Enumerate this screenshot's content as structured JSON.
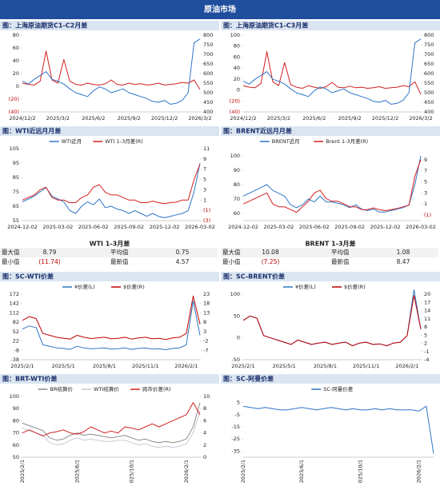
{
  "header": {
    "title": "原油市场"
  },
  "chart_data": [
    {
      "type": "line",
      "title": "图：上海原油期货C1-C2月差",
      "categories": [
        "2024/12/2",
        null,
        null,
        null,
        null,
        null,
        "2025/3/2",
        null,
        null,
        null,
        null,
        null,
        "2025/6/2",
        null,
        null,
        null,
        null,
        null,
        "2025/9/2",
        null,
        null,
        null,
        null,
        null,
        "2025/12/2",
        null,
        null,
        null,
        null,
        null,
        "2026/3/2"
      ],
      "ylim": [
        -40,
        80
      ],
      "yticks": [
        80,
        60,
        40,
        20,
        0,
        {
          "value": -20,
          "label": "(20)"
        },
        {
          "value": -40,
          "label": "(40)"
        }
      ],
      "y2lim": [
        400,
        800
      ],
      "y2ticks": [
        800,
        750,
        700,
        650,
        600,
        550,
        500,
        450,
        400
      ],
      "series": [
        {
          "color": "#d42020",
          "values": [
            5,
            3,
            2,
            8,
            55,
            10,
            5,
            42,
            8,
            3,
            2,
            5,
            3,
            2,
            4,
            10,
            3,
            2,
            5,
            3,
            4,
            2,
            3,
            5,
            2,
            3,
            4,
            6,
            5,
            10,
            -5
          ]
        },
        {
          "color": "#2e75c8",
          "axis": "y2",
          "values": [
            560,
            545,
            570,
            590,
            610,
            570,
            560,
            545,
            520,
            500,
            490,
            480,
            510,
            530,
            520,
            500,
            510,
            520,
            500,
            490,
            480,
            470,
            455,
            450,
            460,
            440,
            445,
            460,
            500,
            760,
            780
          ]
        }
      ]
    },
    {
      "type": "line",
      "title": "图：上海原油期货C1-C3月差",
      "categories": [
        "2024/12/2",
        null,
        null,
        null,
        null,
        null,
        "2025/3/2",
        null,
        null,
        null,
        null,
        null,
        "2025/6/2",
        null,
        null,
        null,
        null,
        null,
        "2025/9/2",
        null,
        null,
        null,
        null,
        null,
        "2025/12/2",
        null,
        null,
        null,
        null,
        null,
        "2026/3/2"
      ],
      "ylim": [
        -40,
        100
      ],
      "yticks": [
        100,
        80,
        60,
        40,
        20,
        0,
        {
          "value": -20,
          "label": "(20)"
        },
        {
          "value": -40,
          "label": "(40)"
        }
      ],
      "y2lim": [
        400,
        800
      ],
      "y2ticks": [
        800,
        750,
        700,
        650,
        600,
        550,
        500,
        450,
        400
      ],
      "series": [
        {
          "color": "#d42020",
          "values": [
            8,
            5,
            4,
            12,
            70,
            15,
            8,
            50,
            10,
            5,
            3,
            8,
            5,
            3,
            6,
            14,
            5,
            4,
            7,
            4,
            5,
            3,
            4,
            6,
            3,
            4,
            5,
            8,
            6,
            15,
            -8
          ]
        },
        {
          "color": "#2e75c8",
          "axis": "y2",
          "values": [
            560,
            545,
            570,
            590,
            610,
            570,
            560,
            545,
            520,
            500,
            490,
            480,
            510,
            530,
            520,
            500,
            510,
            520,
            500,
            490,
            480,
            470,
            455,
            450,
            460,
            440,
            445,
            460,
            500,
            760,
            780
          ]
        }
      ]
    },
    {
      "type": "line",
      "title": "图：WTI近远月月差",
      "legend": true,
      "categories": [
        "2024-12-02",
        null,
        null,
        null,
        null,
        null,
        "2025-03-02",
        null,
        null,
        null,
        null,
        null,
        "2025-06-02",
        null,
        null,
        null,
        null,
        null,
        "2025-09-02",
        null,
        null,
        null,
        null,
        null,
        "2025-12-02",
        null,
        null,
        null,
        null,
        null,
        "2026-03-02"
      ],
      "ylim": [
        55,
        105
      ],
      "yticks": [
        105,
        95,
        85,
        75,
        65,
        55
      ],
      "y2lim": [
        -3,
        11
      ],
      "y2ticks": [
        11,
        9,
        7,
        5,
        3,
        1,
        {
          "value": -1,
          "label": "(1)"
        },
        {
          "value": -3,
          "label": "(3)"
        }
      ],
      "series": [
        {
          "name": "WTI近月",
          "color": "#2e75c8",
          "values": [
            68,
            70,
            72,
            75,
            78,
            72,
            70,
            68,
            62,
            60,
            65,
            68,
            66,
            70,
            64,
            65,
            63,
            62,
            60,
            62,
            60,
            58,
            60,
            58,
            57,
            58,
            59,
            60,
            62,
            75,
            95
          ]
        },
        {
          "name": "WTI 1-3月差(R)",
          "color": "#d42020",
          "axis": "y2",
          "values": [
            1,
            1.5,
            2,
            3,
            3.5,
            1.5,
            1,
            1,
            0.5,
            0.5,
            1.5,
            2,
            3.5,
            4,
            2.5,
            2,
            2,
            1.5,
            1,
            1,
            0.5,
            0.5,
            0.8,
            0.5,
            0.3,
            0.5,
            0.6,
            1,
            1,
            5,
            8
          ]
        }
      ]
    },
    {
      "type": "line",
      "title": "图：BRENT近远月月差",
      "legend": true,
      "categories": [
        "2024-12-02",
        null,
        null,
        null,
        null,
        null,
        "2025-03-02",
        null,
        null,
        null,
        null,
        null,
        "2025-06-02",
        null,
        null,
        null,
        null,
        null,
        "2025-09-02",
        null,
        null,
        null,
        null,
        null,
        "2025-12-02",
        null,
        null,
        null,
        null,
        null,
        "2026-03-02"
      ],
      "ylim": [
        55,
        105
      ],
      "yticks": [
        100,
        90,
        80,
        70,
        60
      ],
      "y2lim": [
        -2,
        11
      ],
      "y2ticks": [
        9,
        7,
        5,
        3,
        1,
        {
          "value": -1,
          "label": "(1)"
        }
      ],
      "series": [
        {
          "name": "BRENT近月",
          "color": "#2e75c8",
          "values": [
            72,
            74,
            76,
            78,
            80,
            76,
            74,
            72,
            66,
            64,
            66,
            70,
            68,
            72,
            68,
            68,
            67,
            66,
            64,
            66,
            63,
            62,
            63,
            61,
            61,
            62,
            63,
            64,
            66,
            80,
            100
          ]
        },
        {
          "name": "Brent 1-3月差(R)",
          "color": "#d42020",
          "axis": "y2",
          "values": [
            1,
            1.5,
            2,
            2.5,
            3,
            1,
            0.5,
            0.5,
            0,
            -0.5,
            0.5,
            1.5,
            3,
            3.5,
            2,
            1.5,
            1.5,
            1,
            0.5,
            0.5,
            0,
            0,
            0.3,
            0,
            -0.2,
            0,
            0.2,
            0.5,
            0.8,
            6,
            9
          ]
        }
      ]
    },
    {
      "type": "line",
      "title": "图：SC-WTI价差",
      "legend": true,
      "categories": [
        "2025/2/1",
        null,
        null,
        null,
        null,
        null,
        "2025/5/1",
        null,
        null,
        null,
        null,
        null,
        "2025/8/1",
        null,
        null,
        null,
        null,
        null,
        "2025/11/1",
        null,
        null,
        null,
        null,
        null,
        "2026/2/1",
        null,
        null
      ],
      "ylim": [
        -38,
        172
      ],
      "yticks": [
        172,
        142,
        112,
        82,
        52,
        22,
        -8,
        -38
      ],
      "y2lim": [
        -12,
        23
      ],
      "y2ticks": [
        23,
        18,
        13,
        8,
        3,
        -2,
        -7
      ],
      "series": [
        {
          "name": "¥价差(L)",
          "color": "#2e75c8",
          "values": [
            60,
            70,
            65,
            10,
            5,
            0,
            -2,
            -5,
            5,
            0,
            -3,
            -2,
            0,
            -4,
            -3,
            0,
            -5,
            -2,
            0,
            -4,
            -3,
            -6,
            -2,
            0,
            10,
            150,
            40
          ]
        },
        {
          "name": "$价差(R)",
          "color": "#c00000",
          "axis": "y2",
          "values": [
            9,
            11,
            10,
            2,
            1,
            0,
            -0.5,
            -1,
            1,
            0,
            -0.7,
            -0.4,
            0,
            -0.8,
            -0.6,
            0,
            -1,
            -0.4,
            0,
            -0.8,
            -0.6,
            -1.2,
            -0.4,
            0,
            2,
            22,
            7
          ]
        }
      ]
    },
    {
      "type": "line",
      "title": "图：SC-BRENT价差",
      "legend": true,
      "categories": [
        "2025/2/1",
        null,
        null,
        null,
        null,
        null,
        "2025/5/1",
        null,
        null,
        null,
        null,
        null,
        "2025/8/1",
        null,
        null,
        null,
        null,
        null,
        "2025/11/1",
        null,
        null,
        null,
        null,
        null,
        "2026/2/1",
        null,
        null
      ],
      "ylim": [
        -50,
        100
      ],
      "yticks": [
        100,
        50,
        0,
        -50
      ],
      "y2lim": [
        -4,
        20
      ],
      "y2ticks": [
        20,
        17,
        14,
        11,
        8,
        5,
        2,
        -1,
        -4
      ],
      "series": [
        {
          "name": "¥价差(L)",
          "color": "#2e75c8",
          "values": [
            40,
            50,
            45,
            5,
            0,
            -5,
            -10,
            -15,
            -5,
            -10,
            -15,
            -12,
            -10,
            -15,
            -12,
            -10,
            -18,
            -12,
            -10,
            -15,
            -14,
            -18,
            -12,
            -10,
            5,
            110,
            20
          ]
        },
        {
          "name": "$价差(R)",
          "color": "#c00000",
          "axis": "y2",
          "values": [
            10.4,
            12,
            11.2,
            4.8,
            4,
            3.2,
            2.4,
            1.6,
            3.2,
            2.4,
            1.6,
            2.1,
            2.4,
            1.6,
            2.1,
            2.4,
            1.1,
            2.1,
            2.4,
            1.6,
            1.8,
            1.1,
            2.1,
            2.4,
            4.8,
            19.5,
            7.2
          ]
        }
      ]
    },
    {
      "type": "line",
      "title": "图：BRT-WTI价差",
      "legend": true,
      "categories": [
        "2025/2/1",
        null,
        null,
        null,
        null,
        null,
        null,
        null,
        "2025/6/1",
        null,
        null,
        null,
        null,
        null,
        null,
        null,
        "2025/10/1",
        null,
        null,
        null,
        null,
        null,
        null,
        null,
        "2026/2/1",
        null,
        null
      ],
      "ylim": [
        50,
        100
      ],
      "yticks": [
        100,
        90,
        80,
        70,
        60,
        50
      ],
      "y2lim": [
        0,
        10
      ],
      "y2ticks": [
        10,
        8,
        6,
        4,
        2,
        0
      ],
      "series": [
        {
          "name": "BR结算价",
          "color": "#8c8c8c",
          "values": [
            78,
            76,
            74,
            72,
            66,
            64,
            65,
            68,
            70,
            68,
            69,
            68,
            67,
            66,
            67,
            68,
            66,
            64,
            65,
            63,
            62,
            63,
            62,
            63,
            65,
            75,
            95
          ]
        },
        {
          "name": "WTI结算价",
          "color": "#c8c8d8",
          "values": [
            74,
            72,
            70,
            68,
            62,
            60,
            61,
            64,
            66,
            64,
            65,
            64,
            63,
            63,
            64,
            64,
            62,
            60,
            61,
            59,
            58,
            59,
            58,
            59,
            61,
            70,
            88
          ]
        },
        {
          "name": "跨市价差(R)",
          "color": "#d42020",
          "axis": "y2",
          "values": [
            4,
            4.5,
            4,
            3.5,
            4,
            4.2,
            4.5,
            4,
            3.8,
            4.2,
            5,
            4.5,
            4,
            4.3,
            4,
            5,
            4.8,
            4.5,
            5,
            5.5,
            5,
            5.5,
            6,
            6.5,
            7,
            9,
            7
          ]
        }
      ]
    },
    {
      "type": "line",
      "title": "图：SC-阿曼价差",
      "legend": true,
      "categories": [
        "2025/2/1",
        null,
        null,
        null,
        null,
        null,
        null,
        null,
        "2025/6/1",
        null,
        null,
        null,
        null,
        null,
        null,
        null,
        "2025/10/1",
        null,
        null,
        null,
        null,
        null,
        null,
        null,
        "2026/2/1",
        null,
        null
      ],
      "ylim": [
        -40,
        10
      ],
      "yticks": [
        5,
        -5,
        -15,
        -25,
        -35
      ],
      "series": [
        {
          "name": "SC-阿曼价差",
          "color": "#2e75c8",
          "values": [
            2,
            1,
            0,
            1,
            0,
            -1,
            -1,
            0,
            1,
            0,
            -1,
            0,
            1,
            0,
            -1,
            0,
            -1,
            -1,
            0,
            -1,
            0,
            -1,
            -1,
            -1,
            -2,
            2,
            -37
          ]
        }
      ]
    }
  ],
  "tables": [
    {
      "title": "WTI 1-3月差",
      "rows": [
        [
          "最大值",
          "8.79",
          "平均值",
          "0.75"
        ],
        [
          "最小值",
          "(11.74)",
          "最新值",
          "4.57"
        ]
      ]
    },
    {
      "title": "BRENT 1-3月差",
      "rows": [
        [
          "最大值",
          "10.08",
          "平均值",
          "1.08"
        ],
        [
          "最小值",
          "(7.25)",
          "最新值",
          "8.47"
        ]
      ]
    }
  ]
}
